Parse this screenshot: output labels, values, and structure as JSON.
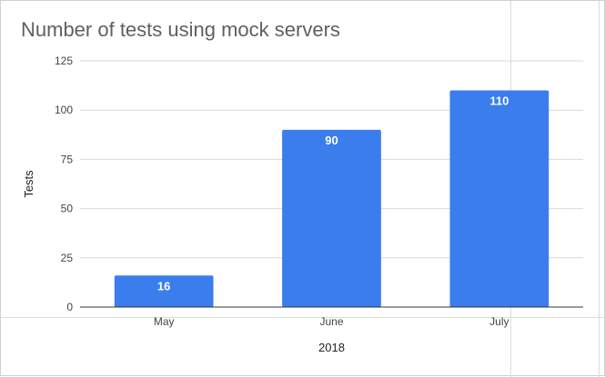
{
  "chart_data": {
    "type": "bar",
    "title": "Number of tests using mock servers",
    "xlabel": "2018",
    "ylabel": "Tests",
    "categories": [
      "May",
      "June",
      "July"
    ],
    "values": [
      16,
      90,
      110
    ],
    "data_labels": [
      "16",
      "90",
      "110"
    ],
    "ylim": [
      0,
      125
    ],
    "yticks": [
      0,
      25,
      50,
      75,
      100,
      125
    ],
    "grid": true,
    "legend": "none",
    "colors": {
      "bar": "#3b7ded",
      "grid": "#d9d9d9",
      "axis": "#333333"
    }
  }
}
